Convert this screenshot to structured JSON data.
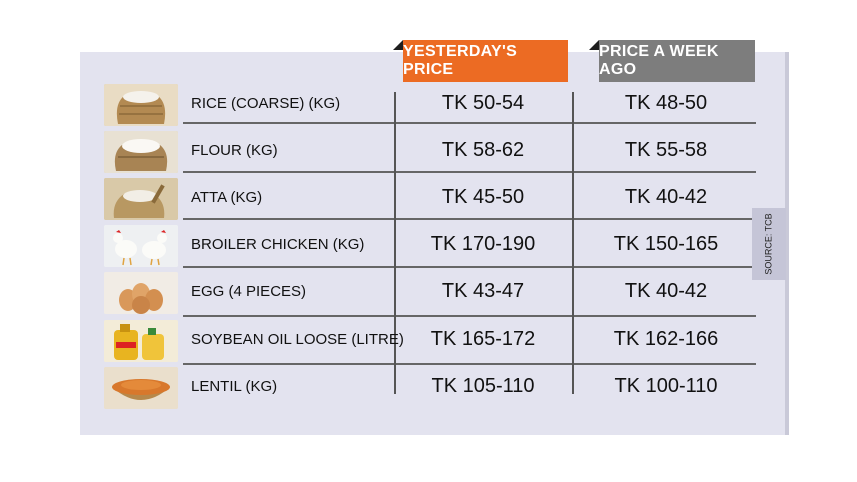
{
  "headers": {
    "yesterday": "YESTERDAY'S PRICE",
    "week_ago": "PRICE A WEEK AGO"
  },
  "colors": {
    "yesterday_header": "#ec6b23",
    "week_header": "#7d7d7d",
    "panel": "#e3e3ef"
  },
  "rows": [
    {
      "item": "RICE (COARSE) (KG)",
      "yesterday": "TK 50-54",
      "week_ago": "TK 48-50",
      "icon": "rice-sack-icon"
    },
    {
      "item": "FLOUR  (KG)",
      "yesterday": "TK 58-62",
      "week_ago": "TK 55-58",
      "icon": "flour-sack-icon"
    },
    {
      "item": "ATTA  (KG)",
      "yesterday": "TK 45-50",
      "week_ago": "TK 40-42",
      "icon": "atta-icon"
    },
    {
      "item": "BROILER CHICKEN (KG)",
      "yesterday": "TK 170-190",
      "week_ago": "TK 150-165",
      "icon": "chicken-icon"
    },
    {
      "item": "EGG  (4 PIECES)",
      "yesterday": "TK 43-47",
      "week_ago": "TK 40-42",
      "icon": "egg-icon"
    },
    {
      "item": "SOYBEAN OIL LOOSE (LITRE)",
      "yesterday": "TK 165-172",
      "week_ago": "TK 162-166",
      "icon": "oil-bottle-icon"
    },
    {
      "item": "LENTIL (KG)",
      "yesterday": "TK 105-110",
      "week_ago": "TK 100-110",
      "icon": "lentil-bowl-icon"
    }
  ],
  "source": "SOURCE: TCB"
}
